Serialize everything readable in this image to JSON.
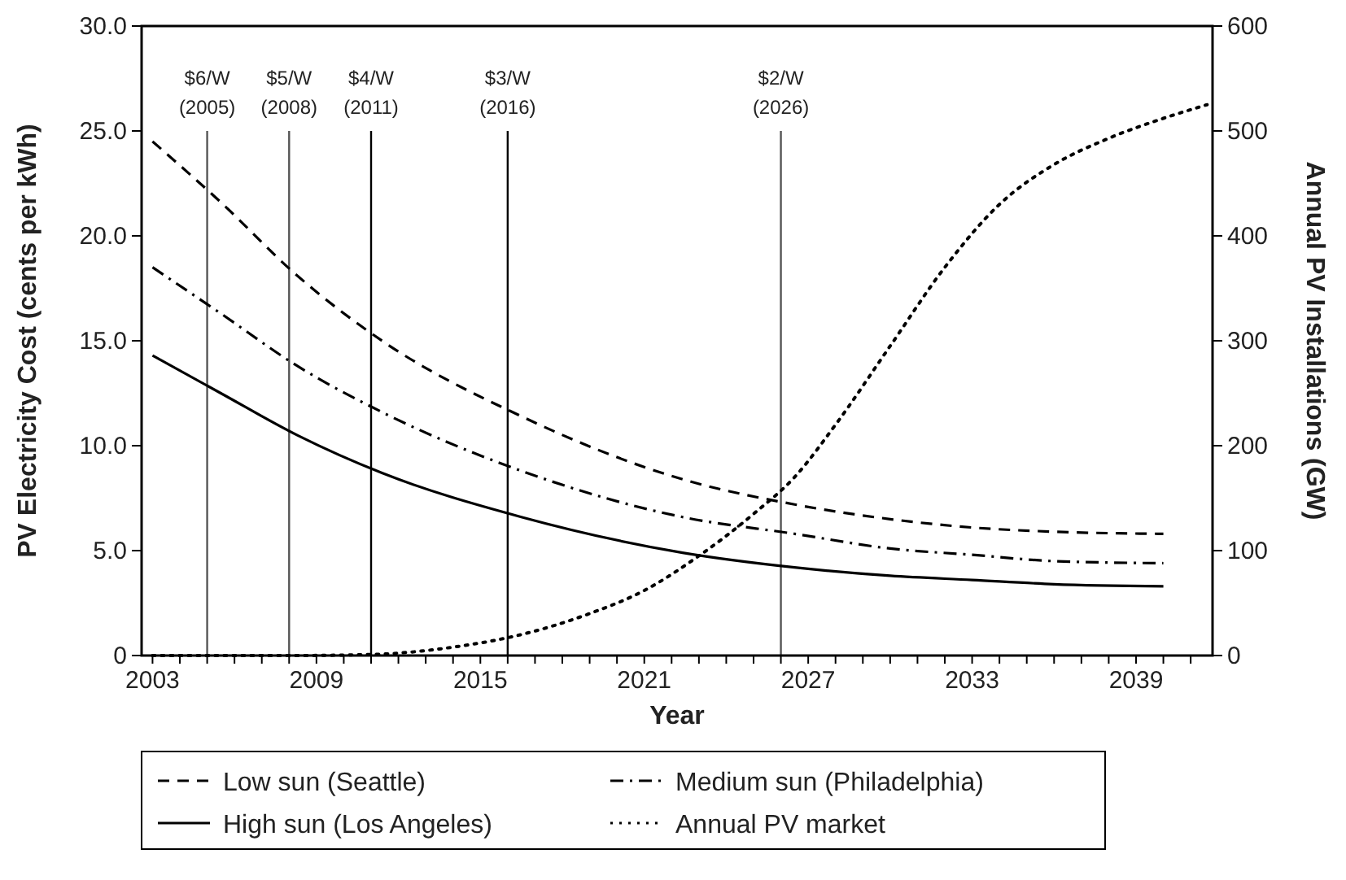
{
  "chart_data": {
    "type": "line",
    "xlabel": "Year",
    "ylabel": "PV Electricity Cost (cents per kWh)",
    "y2label": "Annual PV Installations (GW)",
    "xlim": [
      2002.6,
      2041.8
    ],
    "xticks": [
      2003,
      {
        "value": 2004,
        "label": null
      },
      {
        "value": 2005,
        "label": null
      },
      {
        "value": 2006,
        "label": null
      },
      {
        "value": 2007,
        "label": null
      },
      {
        "value": 2008,
        "label": null
      },
      2009,
      {
        "value": 2010,
        "label": null
      },
      {
        "value": 2011,
        "label": null
      },
      {
        "value": 2012,
        "label": null
      },
      {
        "value": 2013,
        "label": null
      },
      {
        "value": 2014,
        "label": null
      },
      2015,
      {
        "value": 2016,
        "label": null
      },
      {
        "value": 2017,
        "label": null
      },
      {
        "value": 2018,
        "label": null
      },
      {
        "value": 2019,
        "label": null
      },
      {
        "value": 2020,
        "label": null
      },
      2021,
      {
        "value": 2022,
        "label": null
      },
      {
        "value": 2023,
        "label": null
      },
      {
        "value": 2024,
        "label": null
      },
      {
        "value": 2025,
        "label": null
      },
      {
        "value": 2026,
        "label": null
      },
      2027,
      {
        "value": 2028,
        "label": null
      },
      {
        "value": 2029,
        "label": null
      },
      {
        "value": 2030,
        "label": null
      },
      {
        "value": 2031,
        "label": null
      },
      {
        "value": 2032,
        "label": null
      },
      2033,
      {
        "value": 2034,
        "label": null
      },
      {
        "value": 2035,
        "label": null
      },
      {
        "value": 2036,
        "label": null
      },
      {
        "value": 2037,
        "label": null
      },
      {
        "value": 2038,
        "label": null
      },
      2039,
      {
        "value": 2040,
        "label": null
      },
      {
        "value": 2041,
        "label": null
      }
    ],
    "ylim": [
      0,
      30
    ],
    "yticks": [
      {
        "value": 0,
        "label": "0"
      },
      {
        "value": 5,
        "label": "5.0"
      },
      {
        "value": 10,
        "label": "10.0"
      },
      {
        "value": 15,
        "label": "15.0"
      },
      {
        "value": 20,
        "label": "20.0"
      },
      {
        "value": 25,
        "label": "25.0"
      },
      {
        "value": 30,
        "label": "30.0"
      }
    ],
    "y2lim": [
      0,
      600
    ],
    "y2ticks": [
      0,
      100,
      200,
      300,
      400,
      500,
      600
    ],
    "grid": false,
    "legend": "bottom",
    "series": [
      {
        "name": "Low sun (Seattle)",
        "color": "#000000",
        "line_style": "dashed",
        "x": [
          2003,
          2005.5,
          2008.3,
          2011.4,
          2016.5,
          2022.4,
          2026.5,
          2030,
          2033,
          2036,
          2040
        ],
        "values": [
          24.5,
          21.6,
          18.1,
          15.0,
          11.4,
          8.4,
          7.2,
          6.5,
          6.1,
          5.9,
          5.8
        ]
      },
      {
        "name": "Medium sun (Philadelphia)",
        "color": "#000000",
        "line_style": "dashdot",
        "x": [
          2003,
          2005.5,
          2008.3,
          2011.4,
          2016.5,
          2022.4,
          2026.5,
          2030,
          2033,
          2036,
          2040
        ],
        "values": [
          18.5,
          16.3,
          13.8,
          11.6,
          8.8,
          6.6,
          5.8,
          5.1,
          4.8,
          4.5,
          4.4
        ]
      },
      {
        "name": "High sun (Los Angeles)",
        "color": "#000000",
        "line_style": "solid",
        "x": [
          2003,
          2005.5,
          2008.3,
          2011.4,
          2016.5,
          2022.4,
          2026.5,
          2030,
          2033,
          2036,
          2040
        ],
        "values": [
          14.3,
          12.5,
          10.5,
          8.7,
          6.6,
          4.9,
          4.2,
          3.8,
          3.6,
          3.4,
          3.3
        ]
      },
      {
        "name": "Annual PV market",
        "color": "#000000",
        "line_style": "dotted",
        "axis": "y2",
        "x": [
          2003,
          2008,
          2011,
          2014,
          2016.5,
          2019,
          2021,
          2023,
          2025,
          2026.5,
          2028,
          2030,
          2032,
          2034,
          2036,
          2038,
          2040,
          2041.6
        ],
        "values": [
          0,
          0,
          1,
          8,
          20,
          40,
          62,
          95,
          135,
          170,
          220,
          295,
          370,
          430,
          468,
          493,
          512,
          525
        ]
      }
    ],
    "ref_lines": [
      {
        "axis": "x",
        "value": 2005,
        "label": "$6/W\n(2005)",
        "color": "#555555"
      },
      {
        "axis": "x",
        "value": 2008,
        "label": "$5/W\n(2008)",
        "color": "#555555"
      },
      {
        "axis": "x",
        "value": 2011,
        "label": "$4/W\n(2011)",
        "color": "#000000"
      },
      {
        "axis": "x",
        "value": 2016,
        "label": "$3/W\n(2016)",
        "color": "#000000"
      },
      {
        "axis": "x",
        "value": 2026,
        "label": "$2/W\n(2026)",
        "color": "#555555"
      }
    ]
  }
}
